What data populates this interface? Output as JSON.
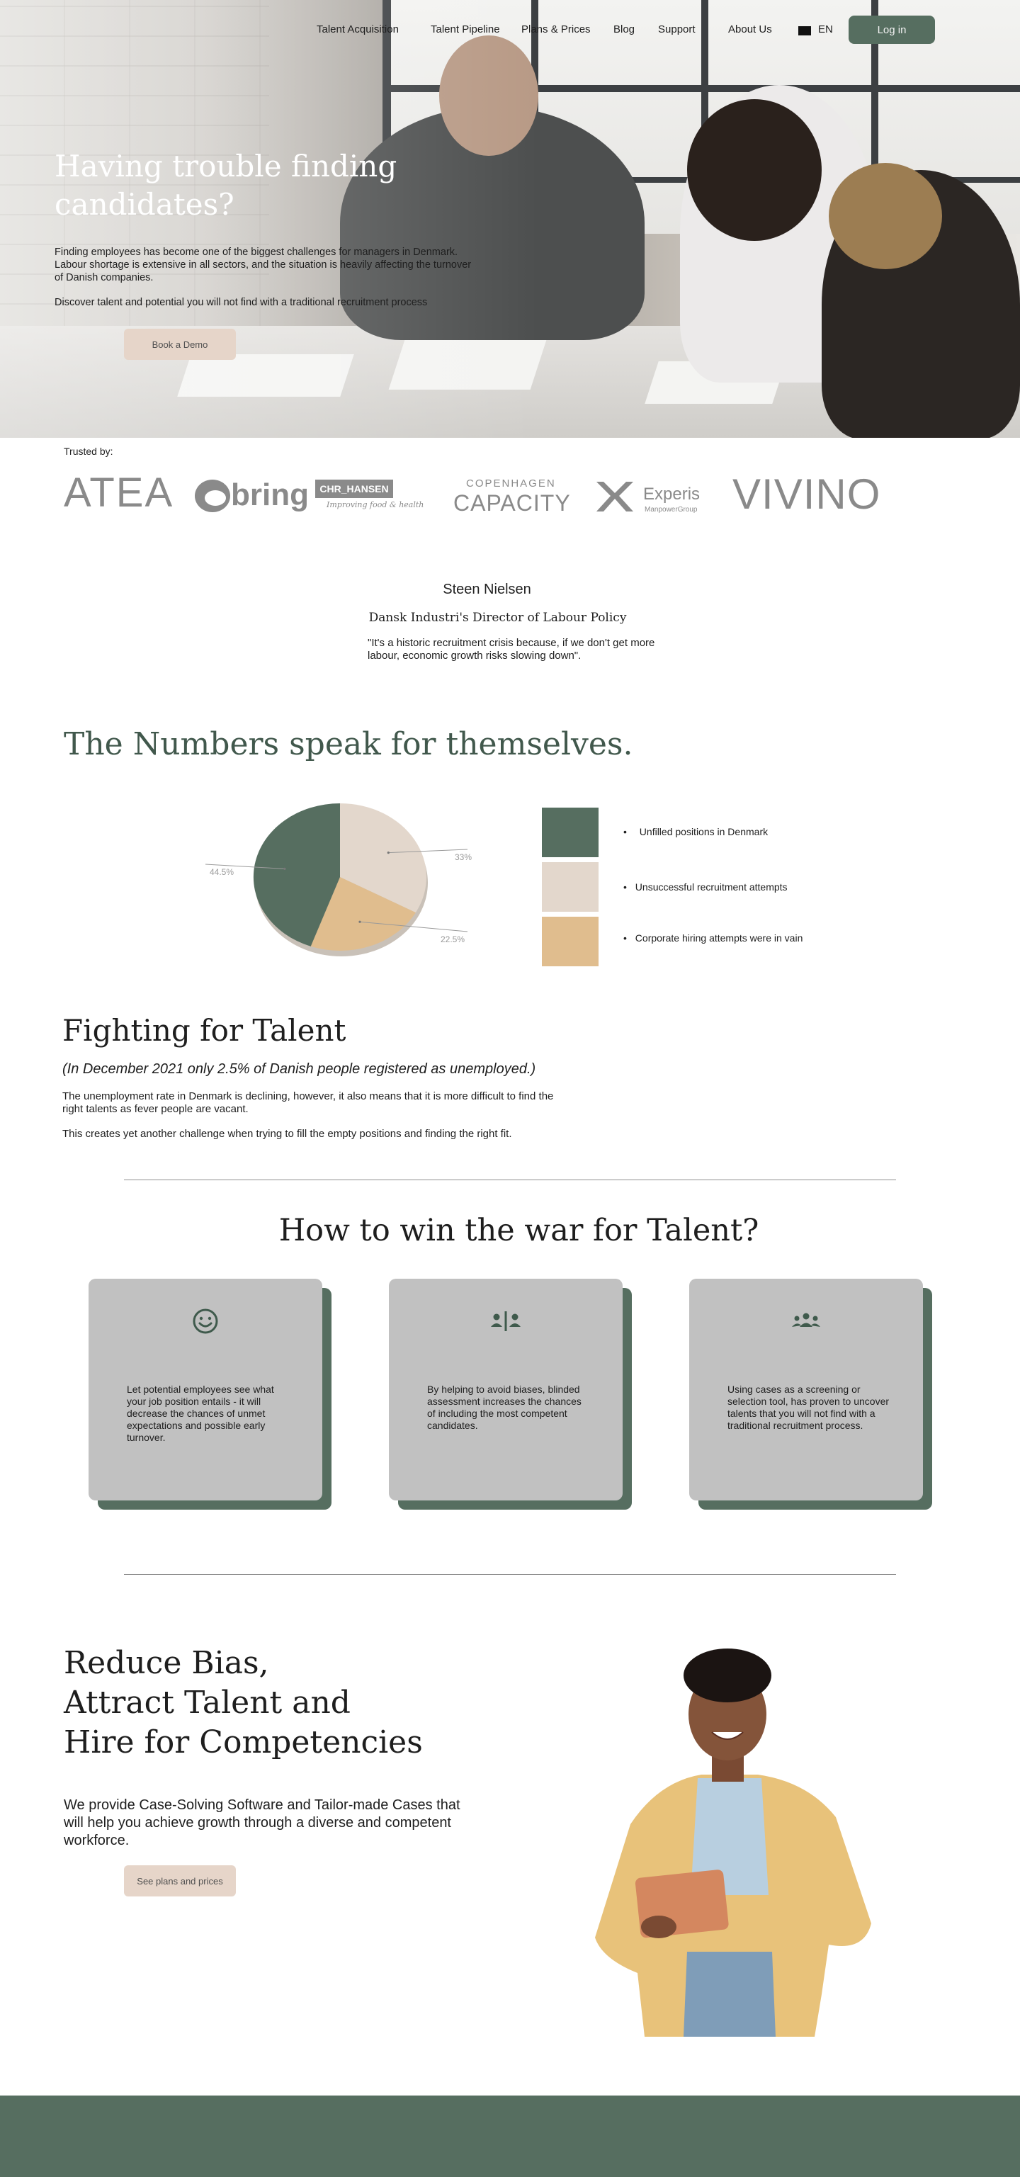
{
  "nav": {
    "items": [
      "Talent  Acquisition",
      "Talent Pipeline",
      "Plans & Prices",
      "Blog",
      "Support",
      "About Us"
    ],
    "language": "EN",
    "login_label": "Log in"
  },
  "hero": {
    "title": "Having trouble finding candidates?",
    "paragraph1": "Finding employees has become one of the biggest challenges for managers in Denmark. Labour shortage is extensive in all sectors, and the situation is heavily affecting the turnover of Danish companies.",
    "paragraph2": "Discover talent and potential you will not find with a traditional recruitment process",
    "cta_label": "Book a Demo"
  },
  "trusted": {
    "label": "Trusted by:",
    "logos": {
      "atea": "ATEA",
      "bring": "bring",
      "chr_hansen": "CHR_HANSEN",
      "chr_hansen_tagline": "Improving food & health",
      "copenhagen_top": "COPENHAGEN",
      "copenhagen_bottom": "CAPACITY",
      "experis": "Experis",
      "experis_sub": "ManpowerGroup",
      "vivino": "VIVINO"
    }
  },
  "quote": {
    "name": "Steen Nielsen",
    "role": "Dansk Industri's Director of Labour Policy",
    "text": "\"It's a historic recruitment crisis because, if we don't get more labour, economic growth risks slowing down\"."
  },
  "numbers": {
    "title": "The Numbers speak for themselves.",
    "legend": [
      {
        "bullet": "•",
        "label": "Unfilled positions in Denmark",
        "color": "#566e60"
      },
      {
        "bullet": "•",
        "label": "Unsuccessful recruitment attempts",
        "color": "#e3d7cc"
      },
      {
        "bullet": "•",
        "label": "Corporate hiring attempts were in vain",
        "color": "#e0bd8e"
      }
    ]
  },
  "chart_data": {
    "type": "pie",
    "categories": [
      "Unfilled positions in Denmark",
      "Unsuccessful recruitment attempts",
      "Corporate hiring attempts were in vain"
    ],
    "values": [
      44.5,
      33,
      22.5
    ],
    "labels": [
      "44.5%",
      "33%",
      "22.5%"
    ],
    "colors": [
      "#566e60",
      "#e3d7cc",
      "#e0bd8e"
    ]
  },
  "fighting": {
    "title": "Fighting for Talent",
    "subtitle": "(In December 2021 only 2.5% of Danish people registered as unemployed.)",
    "paragraph1": "The unemployment rate in Denmark is declining, however, it also means that it is more difficult to find the right talents as fever people are vacant.",
    "paragraph2": "This creates yet another challenge when trying to fill the empty positions and finding the right fit."
  },
  "how": {
    "title": "How to win the war for Talent?",
    "cards": [
      {
        "icon": "smiley-icon",
        "text": "Let potential employees see what your job position entails - it will decrease the chances of unmet expectations and possible early turnover."
      },
      {
        "icon": "divided-people-icon",
        "text": "By helping to avoid biases, blinded assessment increases the chances of including the most competent candidates."
      },
      {
        "icon": "group-icon",
        "text": "Using cases as a screening or selection tool, has proven to uncover talents that you will not find with a traditional recruitment process."
      }
    ]
  },
  "bias": {
    "title_lines": [
      "Reduce Bias,",
      "Attract Talent and",
      "Hire for Competencies"
    ],
    "paragraph": "We provide Case-Solving Software and Tailor-made Cases that will help you achieve growth through a diverse and competent workforce.",
    "cta_label": "See plans and prices"
  },
  "theme": {
    "accent_green": "#566e60",
    "beige": "#e6d5c9",
    "card_grey": "#c1c1c1"
  }
}
